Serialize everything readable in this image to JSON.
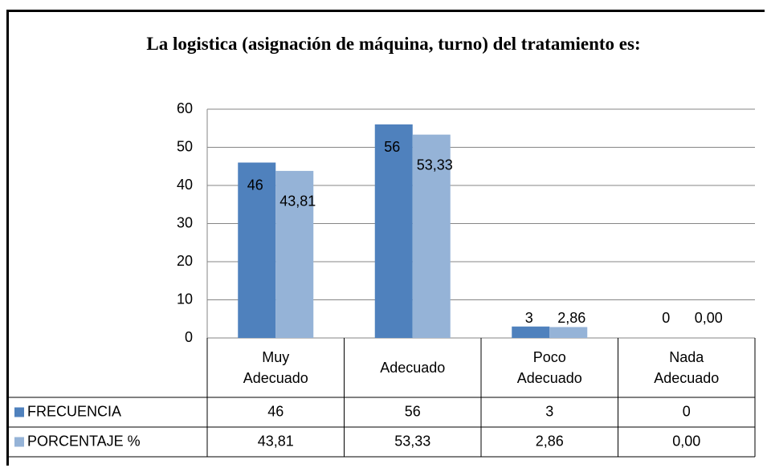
{
  "chart_data": {
    "type": "bar",
    "title": "La logistica (asignación de máquina, turno) del tratamiento es:",
    "categories": [
      "Muy Adecuado",
      "Adecuado",
      "Poco Adecuado",
      "Nada Adecuado"
    ],
    "series": [
      {
        "name": "FRECUENCIA",
        "color": "#4f81bd",
        "values": [
          46,
          56,
          3,
          0
        ]
      },
      {
        "name": "PORCENTAJE %",
        "color": "#95b3d7",
        "values": [
          43.81,
          53.33,
          2.86,
          0
        ],
        "value_labels": [
          "43,81",
          "53,33",
          "2,86",
          "0,00"
        ]
      }
    ],
    "ylim": [
      0,
      60
    ],
    "yticks": [
      0,
      10,
      20,
      30,
      40,
      50,
      60
    ],
    "grid": true,
    "data_table": true
  }
}
